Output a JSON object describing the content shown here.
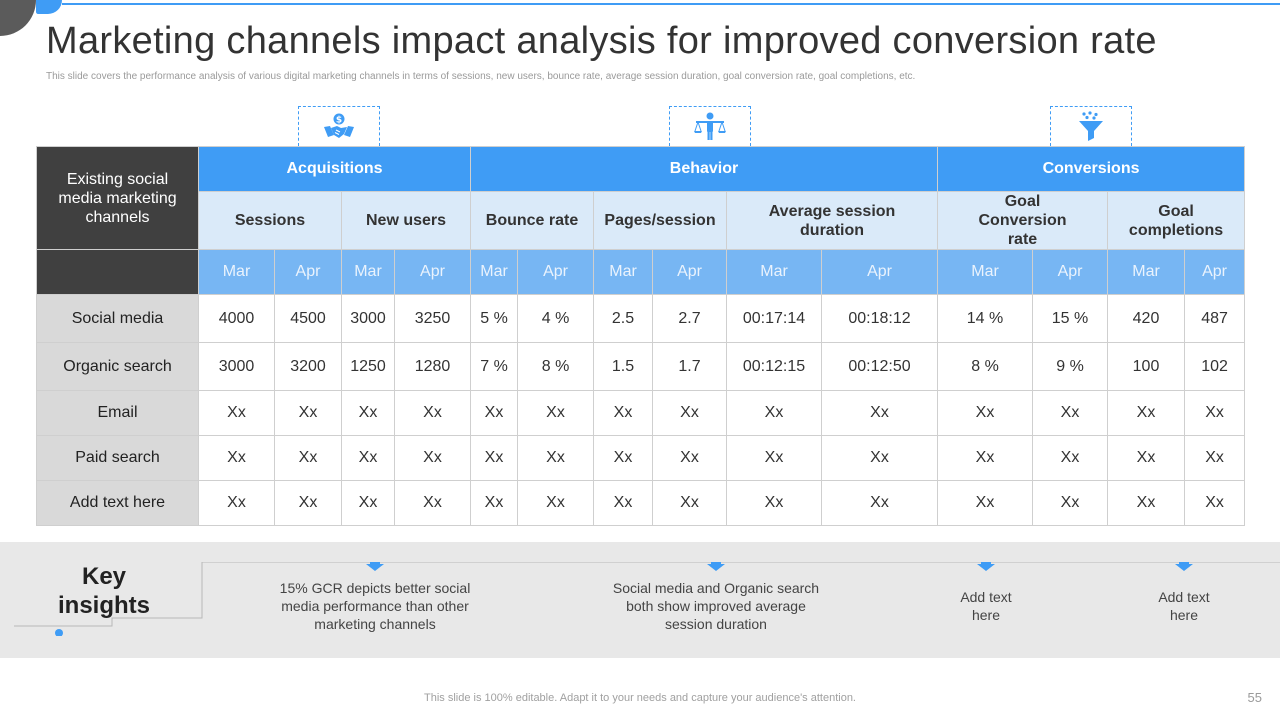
{
  "title": "Marketing channels impact analysis for improved conversion rate",
  "subtitle": "This slide covers the performance analysis of various digital marketing channels in terms of sessions, new users, bounce rate, average session duration, goal conversion rate, goal completions, etc.",
  "icons": {
    "acquisitions": "handshake-money-icon",
    "behavior": "balance-person-icon",
    "conversions": "funnel-icon"
  },
  "colors": {
    "accent": "#3f9cf5",
    "dark": "#404040",
    "header_light": "#daeaf9",
    "period": "#77b6f3",
    "row_label": "#d9d9d9"
  },
  "table": {
    "corner_label": "Existing social media marketing channels",
    "groups": [
      "Acquisitions",
      "Behavior",
      "Conversions"
    ],
    "metrics": [
      "Sessions",
      "New users",
      "Bounce rate",
      "Pages/session",
      "Average session duration",
      "Goal Conversion rate",
      "Goal completions"
    ],
    "periods": [
      "Mar",
      "Apr",
      "Mar",
      "Apr",
      "Mar",
      "Apr",
      "Mar",
      "Apr",
      "Mar",
      "Apr",
      "Mar",
      "Apr",
      "Mar",
      "Apr"
    ],
    "rows": [
      {
        "label": "Social media",
        "cells": [
          "4000",
          "4500",
          "3000",
          "3250",
          "5 %",
          "4 %",
          "2.5",
          "2.7",
          "00:17:14",
          "00:18:12",
          "14 %",
          "15 %",
          "420",
          "487"
        ]
      },
      {
        "label": "Organic search",
        "cells": [
          "3000",
          "3200",
          "1250",
          "1280",
          "7 %",
          "8 %",
          "1.5",
          "1.7",
          "00:12:15",
          "00:12:50",
          "8 %",
          "9 %",
          "100",
          "102"
        ]
      },
      {
        "label": "Email",
        "cells": [
          "Xx",
          "Xx",
          "Xx",
          "Xx",
          "Xx",
          "Xx",
          "Xx",
          "Xx",
          "Xx",
          "Xx",
          "Xx",
          "Xx",
          "Xx",
          "Xx"
        ]
      },
      {
        "label": "Paid search",
        "cells": [
          "Xx",
          "Xx",
          "Xx",
          "Xx",
          "Xx",
          "Xx",
          "Xx",
          "Xx",
          "Xx",
          "Xx",
          "Xx",
          "Xx",
          "Xx",
          "Xx"
        ]
      },
      {
        "label": "Add text here",
        "cells": [
          "Xx",
          "Xx",
          "Xx",
          "Xx",
          "Xx",
          "Xx",
          "Xx",
          "Xx",
          "Xx",
          "Xx",
          "Xx",
          "Xx",
          "Xx",
          "Xx"
        ]
      }
    ]
  },
  "insights": {
    "title": "Key insights",
    "items": [
      "15% GCR depicts better social media performance than other marketing channels",
      "Social media and Organic search both show improved average session duration",
      "Add text here",
      "Add text here"
    ]
  },
  "footer": "This slide is 100% editable. Adapt it to your needs and capture your audience's attention.",
  "page_number": "55"
}
